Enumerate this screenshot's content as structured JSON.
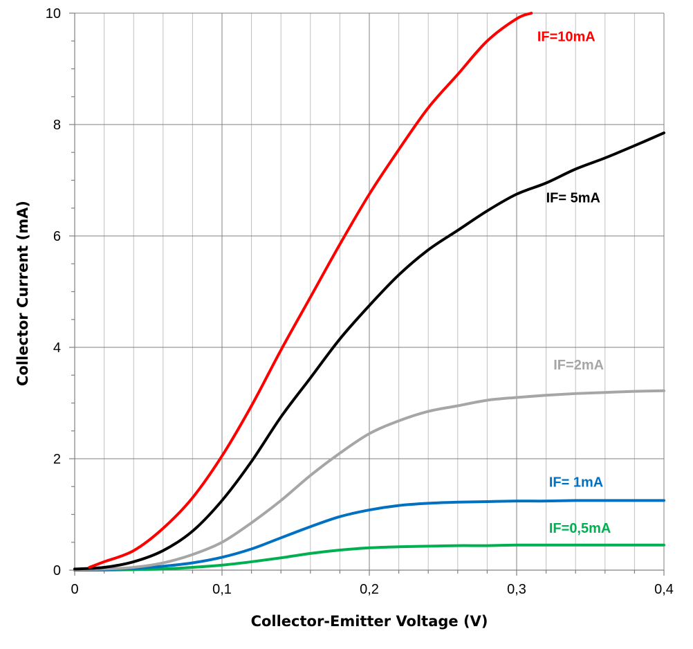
{
  "chart_data": {
    "type": "line",
    "xlabel": "Collector-Emitter Voltage (V)",
    "ylabel": "Collector Current  (mA)",
    "xlim": [
      0,
      0.4
    ],
    "ylim": [
      0,
      10
    ],
    "x_ticks": [
      "0",
      "0,1",
      "0,2",
      "0,3",
      "0,4"
    ],
    "y_ticks": [
      "0",
      "2",
      "4",
      "6",
      "8",
      "10"
    ],
    "x_tick_values": [
      0,
      0.1,
      0.2,
      0.3,
      0.4
    ],
    "y_tick_values": [
      0,
      2,
      4,
      6,
      8,
      10
    ],
    "grid": true,
    "series": [
      {
        "name": "IF=10mA",
        "color": "#ff0000",
        "x": [
          0.01,
          0.02,
          0.04,
          0.06,
          0.08,
          0.1,
          0.12,
          0.14,
          0.16,
          0.18,
          0.2,
          0.22,
          0.24,
          0.26,
          0.28,
          0.3,
          0.31
        ],
        "y": [
          0.05,
          0.15,
          0.35,
          0.75,
          1.3,
          2.05,
          2.95,
          3.95,
          4.9,
          5.85,
          6.75,
          7.55,
          8.3,
          8.9,
          9.5,
          9.9,
          10.0
        ]
      },
      {
        "name": "IF= 5mA",
        "color": "#000000",
        "x": [
          0.0,
          0.02,
          0.04,
          0.06,
          0.08,
          0.1,
          0.12,
          0.14,
          0.16,
          0.18,
          0.2,
          0.22,
          0.24,
          0.26,
          0.28,
          0.3,
          0.32,
          0.34,
          0.36,
          0.38,
          0.4
        ],
        "y": [
          0.02,
          0.05,
          0.15,
          0.35,
          0.7,
          1.25,
          1.95,
          2.75,
          3.45,
          4.15,
          4.75,
          5.3,
          5.75,
          6.1,
          6.45,
          6.75,
          6.95,
          7.2,
          7.4,
          7.62,
          7.85
        ]
      },
      {
        "name": "IF=2mA",
        "color": "#a6a6a6",
        "x": [
          0.0,
          0.02,
          0.04,
          0.06,
          0.08,
          0.1,
          0.12,
          0.14,
          0.16,
          0.18,
          0.2,
          0.22,
          0.24,
          0.26,
          0.28,
          0.3,
          0.32,
          0.34,
          0.36,
          0.38,
          0.4
        ],
        "y": [
          0.01,
          0.02,
          0.05,
          0.13,
          0.28,
          0.5,
          0.85,
          1.25,
          1.7,
          2.1,
          2.45,
          2.68,
          2.85,
          2.95,
          3.05,
          3.1,
          3.14,
          3.17,
          3.19,
          3.21,
          3.22
        ]
      },
      {
        "name": "IF= 1mA",
        "color": "#0070c0",
        "x": [
          0.0,
          0.02,
          0.04,
          0.06,
          0.08,
          0.1,
          0.12,
          0.14,
          0.16,
          0.18,
          0.2,
          0.22,
          0.24,
          0.26,
          0.28,
          0.3,
          0.32,
          0.34,
          0.36,
          0.38,
          0.4
        ],
        "y": [
          0.0,
          0.01,
          0.03,
          0.07,
          0.13,
          0.23,
          0.38,
          0.58,
          0.78,
          0.96,
          1.08,
          1.16,
          1.2,
          1.22,
          1.23,
          1.24,
          1.24,
          1.25,
          1.25,
          1.25,
          1.25
        ]
      },
      {
        "name": "IF=0,5mA",
        "color": "#00b050",
        "x": [
          0.0,
          0.02,
          0.04,
          0.06,
          0.08,
          0.1,
          0.12,
          0.14,
          0.16,
          0.18,
          0.2,
          0.22,
          0.24,
          0.26,
          0.28,
          0.3,
          0.32,
          0.34,
          0.36,
          0.38,
          0.4
        ],
        "y": [
          0.0,
          0.0,
          0.01,
          0.02,
          0.05,
          0.09,
          0.15,
          0.22,
          0.3,
          0.36,
          0.4,
          0.42,
          0.43,
          0.44,
          0.44,
          0.45,
          0.45,
          0.45,
          0.45,
          0.45,
          0.45
        ]
      }
    ],
    "annotations": [
      {
        "text": "IF=10mA",
        "x": 0.314,
        "y": 9.5,
        "color": "#ff0000"
      },
      {
        "text": "IF= 5mA",
        "x": 0.32,
        "y": 6.6,
        "color": "#000000"
      },
      {
        "text": "IF=2mA",
        "x": 0.325,
        "y": 3.6,
        "color": "#a6a6a6"
      },
      {
        "text": "IF= 1mA",
        "x": 0.322,
        "y": 1.5,
        "color": "#0070c0"
      },
      {
        "text": "IF=0,5mA",
        "x": 0.322,
        "y": 0.67,
        "color": "#00b050"
      }
    ]
  }
}
